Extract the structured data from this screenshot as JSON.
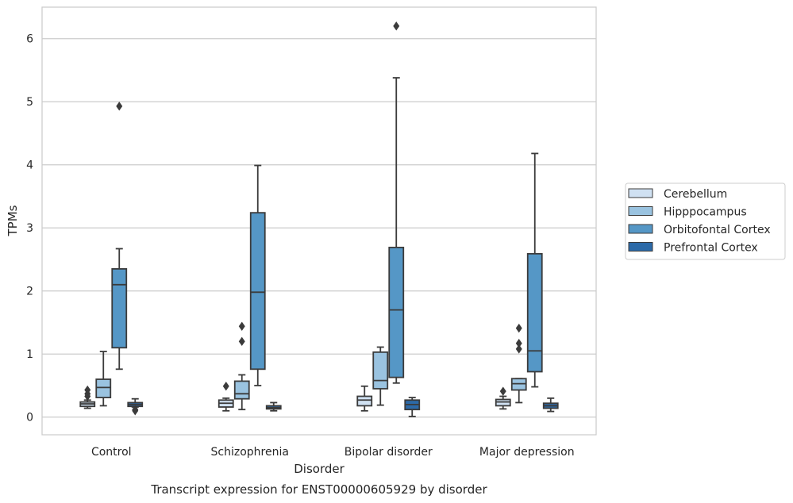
{
  "chart_data": {
    "type": "box",
    "caption": "Transcript expression for ENST00000605929 by disorder",
    "xlabel": "Disorder",
    "ylabel": "TPMs",
    "ylim": [
      -0.28,
      6.5
    ],
    "yticks": [
      0,
      1,
      2,
      3,
      4,
      5,
      6
    ],
    "grid": true,
    "legend_placement": "right",
    "categories": [
      "Control",
      "Schizophrenia",
      "Bipolar disorder",
      "Major depression"
    ],
    "series": [
      {
        "name": "Cerebellum",
        "color": "#d0e1f2",
        "boxes": [
          {
            "whislo": 0.14,
            "q1": 0.17,
            "med": 0.21,
            "q3": 0.24,
            "whishi": 0.27,
            "fliers": [
              0.33,
              0.37,
              0.43
            ]
          },
          {
            "whislo": 0.1,
            "q1": 0.16,
            "med": 0.22,
            "q3": 0.27,
            "whishi": 0.3,
            "fliers": [
              0.49
            ]
          },
          {
            "whislo": 0.1,
            "q1": 0.18,
            "med": 0.27,
            "q3": 0.33,
            "whishi": 0.49,
            "fliers": []
          },
          {
            "whislo": 0.13,
            "q1": 0.18,
            "med": 0.24,
            "q3": 0.28,
            "whishi": 0.33,
            "fliers": [
              0.41
            ]
          }
        ]
      },
      {
        "name": "Hipppocampus",
        "color": "#9ac3e0",
        "boxes": [
          {
            "whislo": 0.18,
            "q1": 0.31,
            "med": 0.47,
            "q3": 0.6,
            "whishi": 1.04,
            "fliers": []
          },
          {
            "whislo": 0.12,
            "q1": 0.29,
            "med": 0.37,
            "q3": 0.57,
            "whishi": 0.67,
            "fliers": [
              1.2,
              1.44
            ]
          },
          {
            "whislo": 0.19,
            "q1": 0.45,
            "med": 0.58,
            "q3": 1.03,
            "whishi": 1.11,
            "fliers": []
          },
          {
            "whislo": 0.23,
            "q1": 0.43,
            "med": 0.53,
            "q3": 0.61,
            "whishi": 0.61,
            "fliers": [
              1.08,
              1.17,
              1.41
            ]
          }
        ]
      },
      {
        "name": "Orbitofontal Cortex",
        "color": "#5597c6",
        "boxes": [
          {
            "whislo": 0.76,
            "q1": 1.1,
            "med": 2.1,
            "q3": 2.35,
            "whishi": 2.67,
            "fliers": [
              4.93
            ]
          },
          {
            "whislo": 0.5,
            "q1": 0.76,
            "med": 1.98,
            "q3": 3.24,
            "whishi": 3.99,
            "fliers": []
          },
          {
            "whislo": 0.54,
            "q1": 0.63,
            "med": 1.7,
            "q3": 2.69,
            "whishi": 5.38,
            "fliers": [
              6.2
            ]
          },
          {
            "whislo": 0.48,
            "q1": 0.72,
            "med": 1.05,
            "q3": 2.59,
            "whishi": 4.18,
            "fliers": []
          }
        ]
      },
      {
        "name": "Prefrontal Cortex",
        "color": "#2c6aa8",
        "boxes": [
          {
            "whislo": 0.16,
            "q1": 0.17,
            "med": 0.2,
            "q3": 0.23,
            "whishi": 0.29,
            "fliers": [
              0.1,
              0.12
            ]
          },
          {
            "whislo": 0.1,
            "q1": 0.13,
            "med": 0.15,
            "q3": 0.18,
            "whishi": 0.23,
            "fliers": []
          },
          {
            "whislo": 0.01,
            "q1": 0.12,
            "med": 0.2,
            "q3": 0.27,
            "whishi": 0.31,
            "fliers": []
          },
          {
            "whislo": 0.09,
            "q1": 0.14,
            "med": 0.18,
            "q3": 0.22,
            "whishi": 0.3,
            "fliers": []
          }
        ]
      }
    ]
  }
}
